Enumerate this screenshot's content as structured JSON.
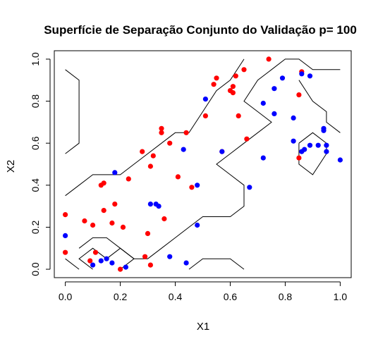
{
  "chart_data": {
    "type": "scatter",
    "title": "Superfície de Separação Conjunto do Validação p= 100",
    "xlabel": "X1",
    "ylabel": "X2",
    "xlim": [
      -0.04,
      1.04
    ],
    "ylim": [
      -0.04,
      1.04
    ],
    "xticks": [
      "0.0",
      "0.2",
      "0.4",
      "0.6",
      "0.8",
      "1.0"
    ],
    "xtick_values": [
      0,
      0.2,
      0.4,
      0.6,
      0.8,
      1.0
    ],
    "yticks": [
      "0.0",
      "0.2",
      "0.4",
      "0.6",
      "0.8",
      "1.0"
    ],
    "ytick_values": [
      0,
      0.2,
      0.4,
      0.6,
      0.8,
      1.0
    ],
    "grid": false,
    "series": [
      {
        "color": "#ff0000",
        "points": [
          [
            0.0,
            0.26
          ],
          [
            0.0,
            0.08
          ],
          [
            0.07,
            0.23
          ],
          [
            0.1,
            0.21
          ],
          [
            0.09,
            0.04
          ],
          [
            0.11,
            0.08
          ],
          [
            0.13,
            0.4
          ],
          [
            0.14,
            0.41
          ],
          [
            0.14,
            0.28
          ],
          [
            0.17,
            0.22
          ],
          [
            0.18,
            0.31
          ],
          [
            0.21,
            0.2
          ],
          [
            0.23,
            0.43
          ],
          [
            0.2,
            0.0
          ],
          [
            0.28,
            0.56
          ],
          [
            0.29,
            0.06
          ],
          [
            0.3,
            0.17
          ],
          [
            0.31,
            0.49
          ],
          [
            0.32,
            0.54
          ],
          [
            0.31,
            0.02
          ],
          [
            0.35,
            0.65
          ],
          [
            0.35,
            0.67
          ],
          [
            0.36,
            0.24
          ],
          [
            0.38,
            0.6
          ],
          [
            0.41,
            0.44
          ],
          [
            0.44,
            0.65
          ],
          [
            0.46,
            0.39
          ],
          [
            0.51,
            0.73
          ],
          [
            0.54,
            0.88
          ],
          [
            0.55,
            0.91
          ],
          [
            0.57,
            0.56
          ],
          [
            0.6,
            0.85
          ],
          [
            0.61,
            0.87
          ],
          [
            0.61,
            0.84
          ],
          [
            0.62,
            0.92
          ],
          [
            0.63,
            0.73
          ],
          [
            0.65,
            0.95
          ],
          [
            0.66,
            0.62
          ],
          [
            0.74,
            1.0
          ],
          [
            0.85,
            0.83
          ],
          [
            0.85,
            0.53
          ],
          [
            0.86,
            0.94
          ]
        ]
      },
      {
        "color": "#0000ff",
        "points": [
          [
            0.0,
            0.16
          ],
          [
            0.1,
            0.02
          ],
          [
            0.13,
            0.04
          ],
          [
            0.15,
            0.05
          ],
          [
            0.18,
            0.46
          ],
          [
            0.17,
            0.03
          ],
          [
            0.22,
            0.01
          ],
          [
            0.31,
            0.31
          ],
          [
            0.33,
            0.31
          ],
          [
            0.34,
            0.3
          ],
          [
            0.38,
            0.06
          ],
          [
            0.43,
            0.57
          ],
          [
            0.44,
            0.03
          ],
          [
            0.48,
            0.4
          ],
          [
            0.48,
            0.21
          ],
          [
            0.51,
            0.81
          ],
          [
            0.57,
            0.56
          ],
          [
            0.67,
            0.39
          ],
          [
            0.72,
            0.79
          ],
          [
            0.72,
            0.53
          ],
          [
            0.76,
            0.86
          ],
          [
            0.76,
            0.74
          ],
          [
            0.79,
            0.91
          ],
          [
            0.83,
            0.72
          ],
          [
            0.83,
            0.61
          ],
          [
            0.86,
            0.56
          ],
          [
            0.86,
            0.93
          ],
          [
            0.87,
            0.57
          ],
          [
            0.89,
            0.92
          ],
          [
            0.89,
            0.59
          ],
          [
            0.92,
            0.59
          ],
          [
            0.94,
            0.67
          ],
          [
            0.94,
            0.66
          ],
          [
            0.95,
            0.59
          ],
          [
            0.95,
            0.56
          ],
          [
            1.0,
            0.52
          ]
        ]
      }
    ],
    "contours": [
      [
        [
          0.0,
          0.95
        ],
        [
          0.05,
          0.9
        ],
        [
          0.05,
          0.6
        ],
        [
          0.0,
          0.55
        ]
      ],
      [
        [
          0.0,
          0.35
        ],
        [
          0.05,
          0.4
        ],
        [
          0.1,
          0.45
        ],
        [
          0.2,
          0.45
        ],
        [
          0.25,
          0.5
        ],
        [
          0.3,
          0.55
        ],
        [
          0.35,
          0.6
        ],
        [
          0.4,
          0.65
        ],
        [
          0.45,
          0.65
        ],
        [
          0.5,
          0.75
        ],
        [
          0.55,
          0.85
        ],
        [
          0.6,
          0.9
        ],
        [
          0.65,
          1.0
        ]
      ],
      [
        [
          0.05,
          0.1
        ],
        [
          0.1,
          0.15
        ],
        [
          0.15,
          0.15
        ],
        [
          0.2,
          0.1
        ],
        [
          0.25,
          0.05
        ],
        [
          0.3,
          0.05
        ],
        [
          0.35,
          0.1
        ],
        [
          0.4,
          0.15
        ],
        [
          0.45,
          0.2
        ],
        [
          0.5,
          0.25
        ],
        [
          0.55,
          0.25
        ],
        [
          0.6,
          0.25
        ],
        [
          0.65,
          0.3
        ],
        [
          0.65,
          0.4
        ],
        [
          0.6,
          0.45
        ],
        [
          0.55,
          0.5
        ],
        [
          0.6,
          0.55
        ],
        [
          0.65,
          0.6
        ],
        [
          0.7,
          0.65
        ],
        [
          0.75,
          0.7
        ],
        [
          0.7,
          0.75
        ],
        [
          0.65,
          0.8
        ],
        [
          0.7,
          0.9
        ],
        [
          0.75,
          0.95
        ],
        [
          0.8,
          1.0
        ],
        [
          0.85,
          1.0
        ],
        [
          0.9,
          0.95
        ],
        [
          1.0,
          0.95
        ]
      ],
      [
        [
          0.0,
          0.05
        ],
        [
          0.05,
          0.0
        ]
      ],
      [
        [
          0.1,
          0.0
        ],
        [
          0.05,
          0.05
        ],
        [
          0.1,
          0.1
        ],
        [
          0.15,
          0.05
        ],
        [
          0.2,
          0.1
        ],
        [
          0.25,
          0.05
        ],
        [
          0.2,
          0.0
        ]
      ],
      [
        [
          0.45,
          0.0
        ],
        [
          0.5,
          0.05
        ],
        [
          0.6,
          0.05
        ],
        [
          0.65,
          0.0
        ]
      ],
      [
        [
          0.85,
          0.6
        ],
        [
          0.9,
          0.65
        ],
        [
          0.95,
          0.6
        ],
        [
          0.95,
          0.55
        ],
        [
          0.9,
          0.45
        ],
        [
          0.85,
          0.5
        ],
        [
          0.85,
          0.6
        ]
      ],
      [
        [
          0.85,
          0.9
        ],
        [
          0.9,
          0.8
        ],
        [
          0.95,
          0.75
        ],
        [
          0.95,
          0.7
        ],
        [
          1.0,
          0.65
        ]
      ]
    ]
  }
}
